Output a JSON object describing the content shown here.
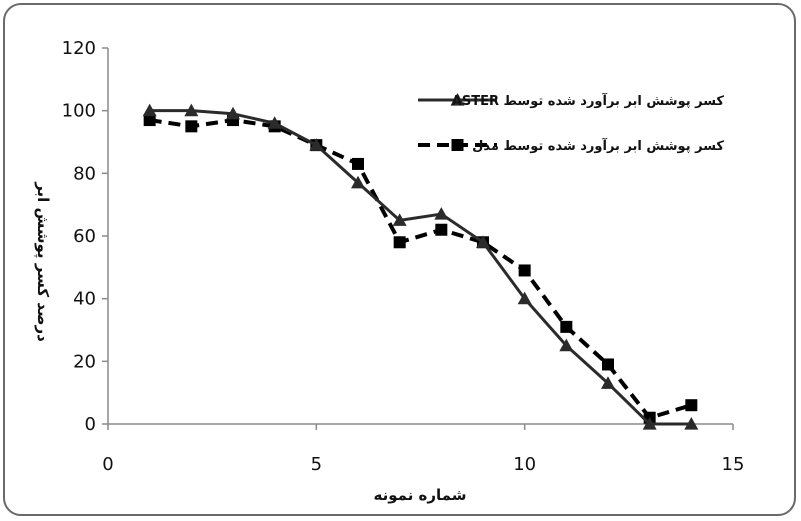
{
  "chart_data": {
    "type": "line",
    "xlabel": "شماره نمونه",
    "ylabel": "درصد کسر پوشش ابر",
    "xlim": [
      0,
      15
    ],
    "ylim": [
      0,
      120
    ],
    "x_ticks": [
      0,
      5,
      10,
      15
    ],
    "y_ticks": [
      0,
      20,
      40,
      60,
      80,
      100,
      120
    ],
    "grid": false,
    "legend_position": "top-right",
    "series": [
      {
        "name": "کسر پوشش ابر برآورد شده توسط ASTER",
        "style": "solid",
        "marker": "triangle",
        "color": "#2b2b2b",
        "x": [
          1,
          2,
          3,
          4,
          5,
          6,
          7,
          8,
          9,
          10,
          11,
          12,
          13,
          14
        ],
        "y": [
          100,
          100,
          99,
          96,
          89,
          77,
          65,
          67,
          58,
          40,
          25,
          13,
          0,
          0
        ]
      },
      {
        "name": "کسر پوشش ابر برآورد شده توسط مدل",
        "style": "dashed",
        "marker": "square",
        "color": "#000000",
        "x": [
          1,
          2,
          3,
          4,
          5,
          6,
          7,
          8,
          9,
          10,
          11,
          12,
          13,
          14
        ],
        "y": [
          97,
          95,
          97,
          95,
          89,
          83,
          58,
          62,
          58,
          49,
          31,
          19,
          2,
          6
        ]
      }
    ]
  }
}
